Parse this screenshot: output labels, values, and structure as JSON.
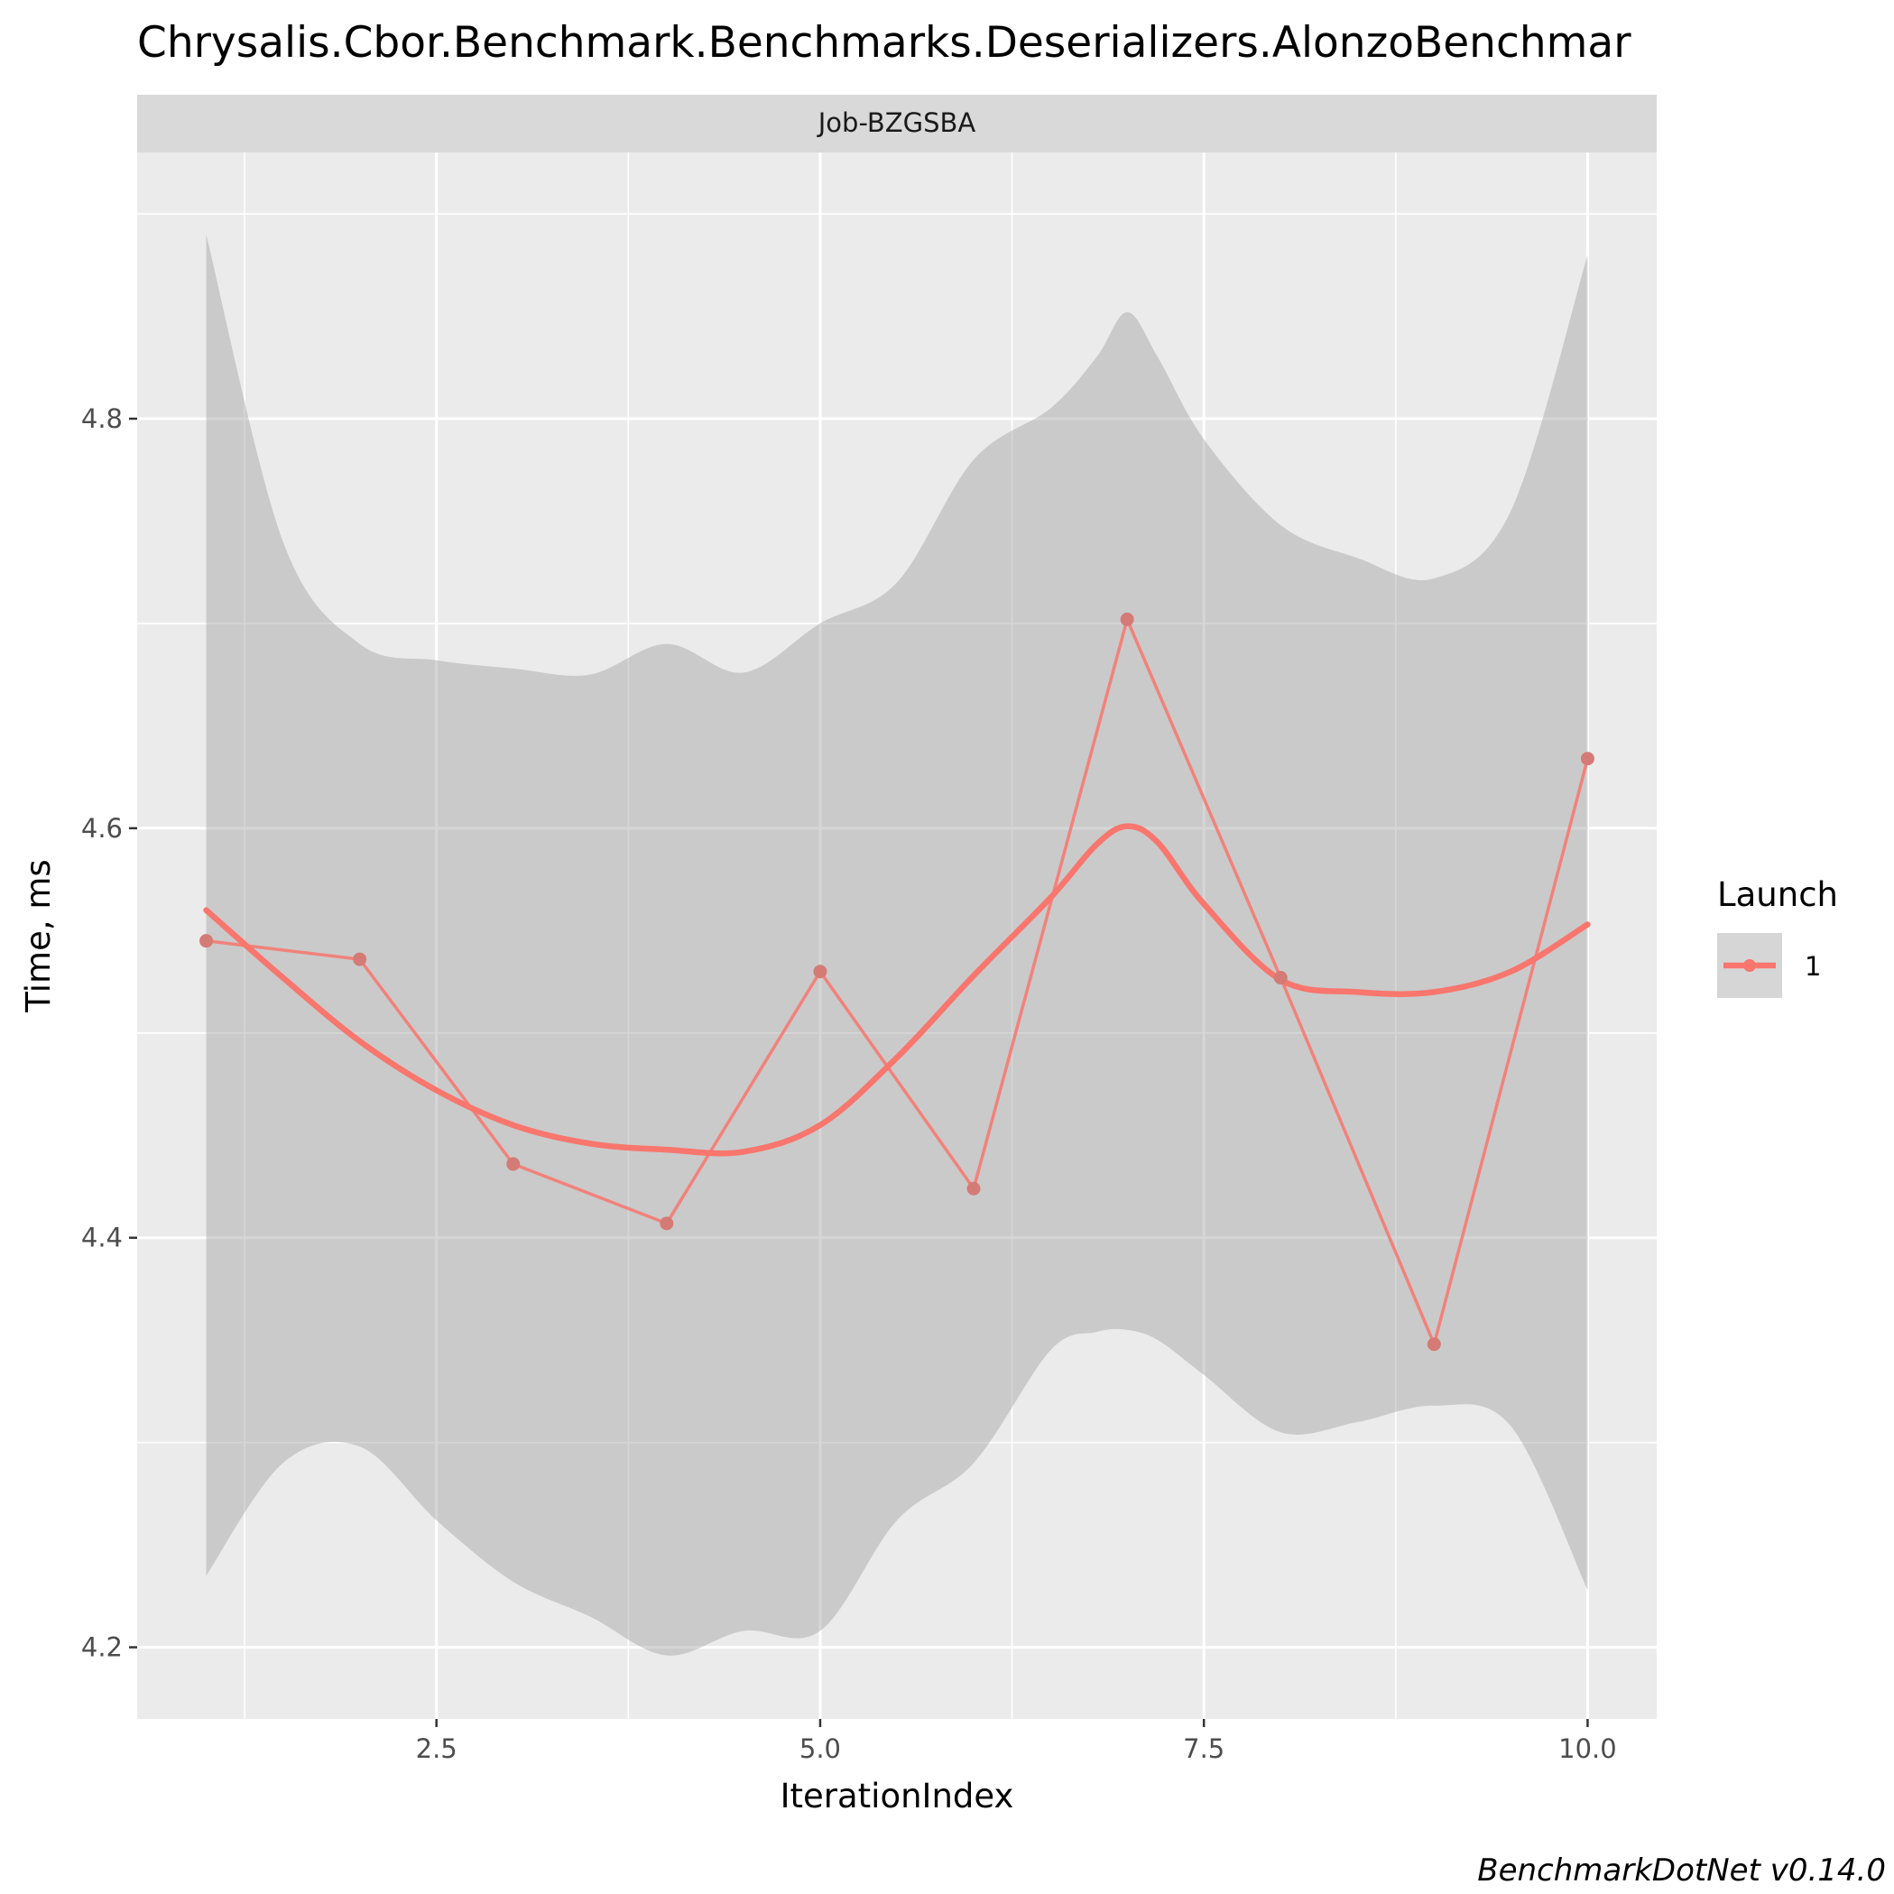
{
  "chart_data": {
    "type": "line",
    "title": "Chrysalis.Cbor.Benchmark.Benchmarks.Deserializers.AlonzoBenchmar",
    "facet": "Job-BZGSBA",
    "xlabel": "IterationIndex",
    "ylabel": "Time, ms",
    "xlim": [
      0.55,
      10.45
    ],
    "ylim": [
      4.165,
      4.93
    ],
    "x_ticks": [
      2.5,
      5.0,
      7.5,
      10.0
    ],
    "x_tick_labels": [
      "2.5",
      "5.0",
      "7.5",
      "10.0"
    ],
    "y_ticks": [
      4.2,
      4.4,
      4.6,
      4.8
    ],
    "y_tick_labels": [
      "4.2",
      "4.4",
      "4.6",
      "4.8"
    ],
    "grid": true,
    "legend": {
      "title": "Launch",
      "position": "right",
      "items": [
        "1"
      ]
    },
    "caption": "BenchmarkDotNet v0.14.0",
    "series": [
      {
        "name": "1",
        "color": "#F8766D",
        "x": [
          1,
          2,
          3,
          4,
          5,
          6,
          7,
          8,
          9,
          10
        ],
        "y": [
          4.545,
          4.536,
          4.436,
          4.407,
          4.53,
          4.424,
          4.702,
          4.527,
          4.348,
          4.634
        ]
      }
    ],
    "smooth": {
      "color": "#F8766D",
      "x": [
        1,
        1.5,
        2,
        2.5,
        3,
        3.5,
        4,
        4.5,
        5,
        5.5,
        6,
        6.5,
        6.8,
        7,
        7.2,
        7.5,
        8,
        8.5,
        9,
        9.5,
        10
      ],
      "y": [
        4.56,
        4.527,
        4.496,
        4.472,
        4.455,
        4.446,
        4.443,
        4.442,
        4.455,
        4.488,
        4.528,
        4.566,
        4.592,
        4.601,
        4.593,
        4.563,
        4.526,
        4.52,
        4.52,
        4.53,
        4.553
      ],
      "upper": [
        4.89,
        4.74,
        4.69,
        4.682,
        4.678,
        4.675,
        4.69,
        4.676,
        4.7,
        4.72,
        4.78,
        4.805,
        4.83,
        4.852,
        4.83,
        4.79,
        4.748,
        4.732,
        4.722,
        4.755,
        4.88
      ],
      "lower": [
        4.235,
        4.29,
        4.298,
        4.262,
        4.232,
        4.215,
        4.196,
        4.208,
        4.208,
        4.262,
        4.29,
        4.345,
        4.354,
        4.355,
        4.35,
        4.333,
        4.305,
        4.31,
        4.318,
        4.308,
        4.228
      ]
    }
  }
}
